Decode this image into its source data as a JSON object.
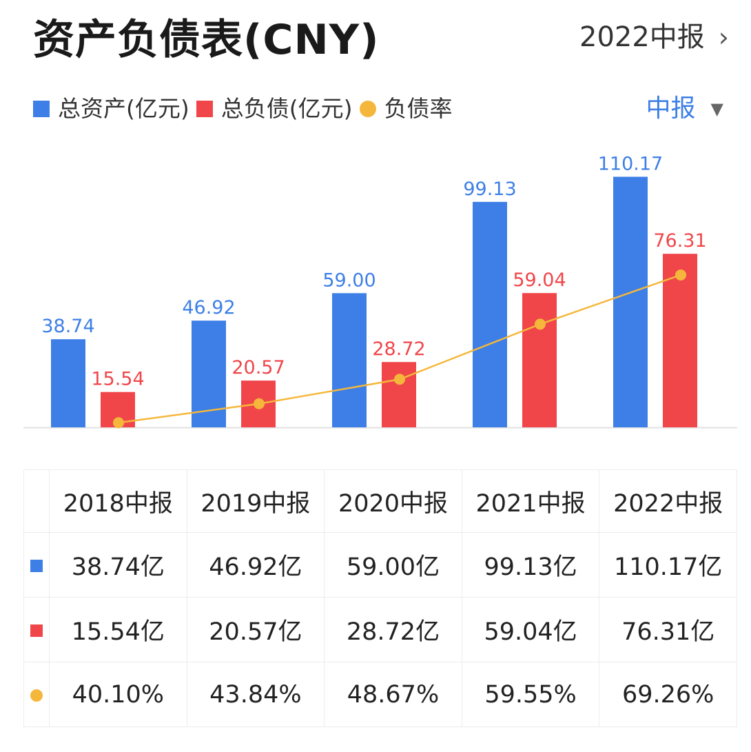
{
  "header": {
    "title": "资产负债表(CNY)",
    "period_link": "2022中报",
    "period_selector": "中报"
  },
  "colors": {
    "assets": "#3d7fe6",
    "liabilities": "#f0464a",
    "ratio": "#f5b73b"
  },
  "chart_data": {
    "type": "bar",
    "categories": [
      "2018中报",
      "2019中报",
      "2020中报",
      "2021中报",
      "2022中报"
    ],
    "series": [
      {
        "name": "总资产(亿元)",
        "type": "bar",
        "values": [
          38.74,
          46.92,
          59.0,
          99.13,
          110.17
        ],
        "labels": [
          "38.74",
          "46.92",
          "59.00",
          "99.13",
          "110.17"
        ]
      },
      {
        "name": "总负债(亿元)",
        "type": "bar",
        "values": [
          15.54,
          20.57,
          28.72,
          59.04,
          76.31
        ],
        "labels": [
          "15.54",
          "20.57",
          "28.72",
          "59.04",
          "76.31"
        ]
      },
      {
        "name": "负债率",
        "type": "line",
        "values": [
          40.1,
          43.84,
          48.67,
          59.55,
          69.26
        ],
        "unit": "%"
      }
    ],
    "legend_position": "top-left",
    "grid": false
  },
  "table": {
    "headers": [
      "2018中报",
      "2019中报",
      "2020中报",
      "2021中报",
      "2022中报"
    ],
    "rows": [
      {
        "marker": "square",
        "color": "#3d7fe6",
        "cells": [
          "38.74亿",
          "46.92亿",
          "59.00亿",
          "99.13亿",
          "110.17亿"
        ]
      },
      {
        "marker": "square",
        "color": "#f0464a",
        "cells": [
          "15.54亿",
          "20.57亿",
          "28.72亿",
          "59.04亿",
          "76.31亿"
        ]
      },
      {
        "marker": "circle",
        "color": "#f5b73b",
        "cells": [
          "40.10%",
          "43.84%",
          "48.67%",
          "59.55%",
          "69.26%"
        ]
      }
    ]
  }
}
